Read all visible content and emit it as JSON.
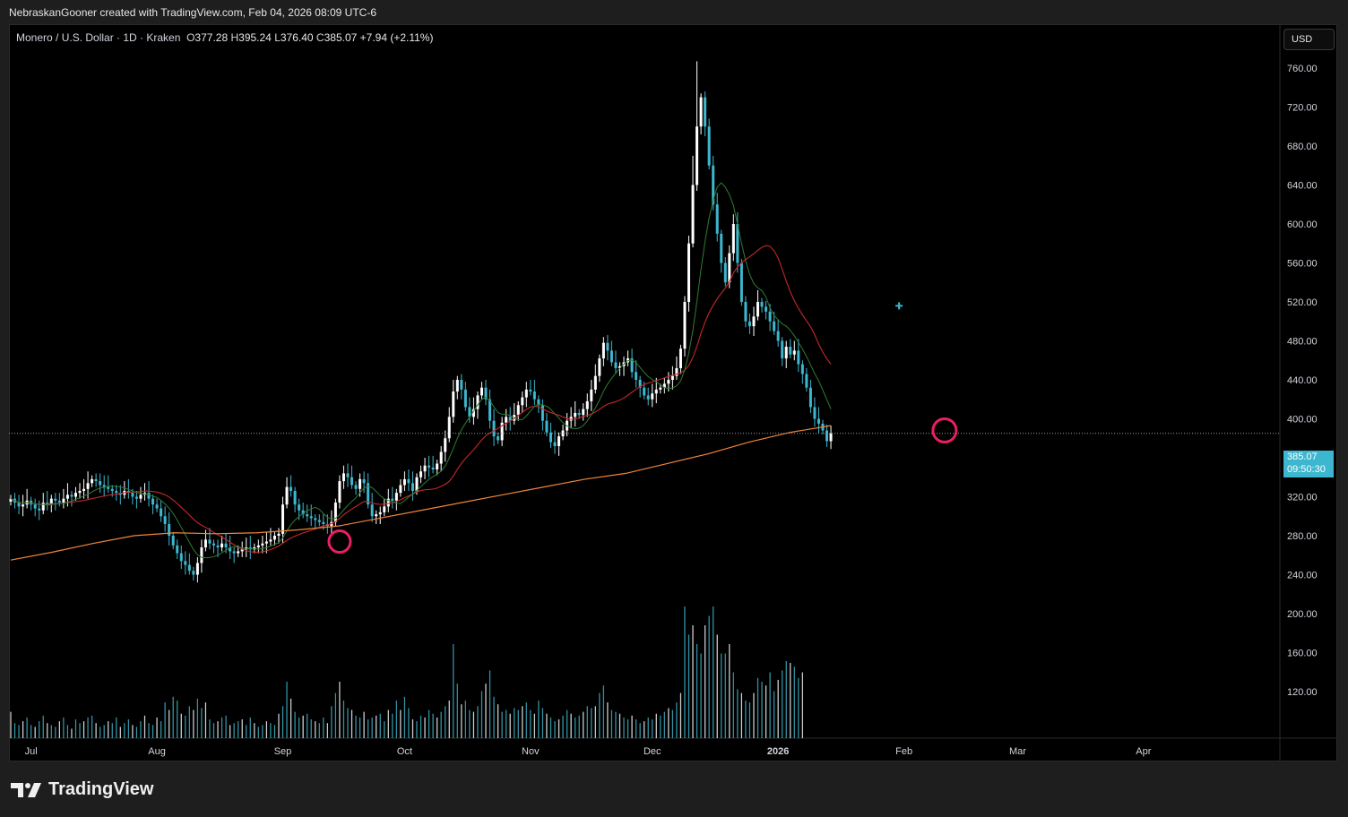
{
  "header": {
    "credit": "NebraskanGooner created with TradingView.com, Feb 04, 2026 08:09 UTC-6"
  },
  "legend": {
    "symbol": "Monero / U.S. Dollar · 1D · Kraken",
    "o_label": "O",
    "o": "377.28",
    "h_label": "H",
    "h": "395.24",
    "l_label": "L",
    "l": "376.40",
    "c_label": "C",
    "c": "385.07",
    "change": "+7.94 (+2.11%)"
  },
  "currency_button": "USD",
  "price_tag": {
    "price": "385.07",
    "countdown": "09:50:30"
  },
  "brand": "TradingView",
  "colors": {
    "up": "#ffffff",
    "down": "#3db7cf",
    "ma200": "#f0853c",
    "ma21": "#c62828",
    "ma9": "#2e7d32",
    "marker": "#e91e63",
    "volume": "#3db7cf"
  },
  "chart_data": {
    "type": "candlestick",
    "title": "Monero / U.S. Dollar · 1D · Kraken",
    "ylim": [
      80,
      800
    ],
    "y_ticks": [
      "120.00",
      "160.00",
      "200.00",
      "240.00",
      "280.00",
      "320.00",
      "360.00",
      "400.00",
      "440.00",
      "480.00",
      "520.00",
      "560.00",
      "600.00",
      "640.00",
      "680.00",
      "720.00",
      "760.00"
    ],
    "x_ticks": [
      {
        "label": "Jul",
        "day": 5
      },
      {
        "label": "Aug",
        "day": 36
      },
      {
        "label": "Sep",
        "day": 67
      },
      {
        "label": "Oct",
        "day": 97
      },
      {
        "label": "Nov",
        "day": 128
      },
      {
        "label": "Dec",
        "day": 158
      },
      {
        "label": "2026",
        "day": 189
      },
      {
        "label": "Feb",
        "day": 220
      },
      {
        "label": "Mar",
        "day": 248
      },
      {
        "label": "Apr",
        "day": 279
      }
    ],
    "first_day": "2025-06-26",
    "closes": [
      318,
      314,
      310,
      312,
      316,
      312,
      308,
      306,
      314,
      312,
      318,
      316,
      314,
      318,
      322,
      320,
      324,
      326,
      328,
      334,
      338,
      336,
      332,
      330,
      328,
      326,
      324,
      322,
      326,
      324,
      320,
      318,
      322,
      324,
      318,
      312,
      308,
      300,
      292,
      280,
      270,
      262,
      254,
      250,
      244,
      240,
      252,
      268,
      276,
      272,
      270,
      268,
      272,
      268,
      264,
      262,
      264,
      266,
      268,
      266,
      268,
      270,
      272,
      274,
      276,
      280,
      282,
      312,
      330,
      326,
      312,
      306,
      302,
      300,
      298,
      296,
      294,
      292,
      290,
      294,
      314,
      336,
      344,
      340,
      332,
      328,
      338,
      334,
      312,
      300,
      302,
      304,
      310,
      318,
      316,
      324,
      332,
      338,
      334,
      326,
      340,
      346,
      352,
      350,
      348,
      354,
      366,
      380,
      402,
      428,
      440,
      430,
      412,
      402,
      410,
      424,
      432,
      420,
      398,
      382,
      378,
      396,
      402,
      398,
      404,
      414,
      422,
      430,
      428,
      420,
      414,
      398,
      386,
      376,
      372,
      382,
      388,
      398,
      402,
      406,
      404,
      410,
      418,
      430,
      444,
      462,
      478,
      470,
      458,
      452,
      454,
      458,
      462,
      448,
      440,
      432,
      424,
      420,
      426,
      430,
      432,
      436,
      440,
      444,
      452,
      472,
      520,
      580,
      640,
      700,
      730,
      700,
      660,
      620,
      590,
      560,
      540,
      570,
      600,
      560,
      520,
      500,
      495,
      505,
      520,
      515,
      510,
      500,
      490,
      480,
      462,
      474,
      466,
      470,
      456,
      446,
      432,
      412,
      400,
      395,
      388,
      377,
      385
    ],
    "ma_200": [
      255,
      263,
      272,
      280,
      283,
      282,
      283,
      286,
      290,
      298,
      306,
      314,
      322,
      330,
      338,
      344,
      354,
      364,
      376,
      386,
      393
    ],
    "volume_label_note": "volume bars share the price axis visually",
    "volume": [
      28,
      16,
      14,
      18,
      22,
      14,
      12,
      18,
      24,
      16,
      14,
      12,
      18,
      22,
      14,
      10,
      20,
      16,
      18,
      22,
      24,
      16,
      12,
      14,
      18,
      16,
      22,
      12,
      16,
      20,
      14,
      12,
      18,
      24,
      16,
      14,
      22,
      18,
      38,
      30,
      44,
      40,
      26,
      24,
      34,
      30,
      42,
      32,
      38,
      20,
      16,
      18,
      22,
      24,
      14,
      16,
      18,
      20,
      14,
      22,
      16,
      12,
      14,
      18,
      16,
      14,
      26,
      34,
      60,
      42,
      28,
      22,
      24,
      26,
      20,
      18,
      16,
      22,
      16,
      34,
      48,
      60,
      40,
      32,
      30,
      24,
      22,
      28,
      20,
      22,
      24,
      26,
      18,
      30,
      26,
      40,
      30,
      44,
      32,
      20,
      18,
      24,
      22,
      30,
      26,
      22,
      28,
      34,
      40,
      100,
      58,
      36,
      40,
      30,
      28,
      34,
      50,
      58,
      72,
      44,
      36,
      28,
      30,
      26,
      32,
      30,
      34,
      38,
      30,
      26,
      40,
      32,
      26,
      22,
      18,
      20,
      24,
      30,
      26,
      22,
      24,
      28,
      34,
      32,
      34,
      48,
      56,
      38,
      30,
      28,
      26,
      22,
      20,
      24,
      20,
      16,
      18,
      22,
      20,
      26,
      24,
      28,
      32,
      30,
      38,
      48,
      140,
      110,
      120,
      100,
      90,
      120,
      130,
      140,
      110,
      90,
      90,
      100,
      70,
      52,
      48,
      40,
      38,
      48,
      64,
      60,
      56,
      70,
      50,
      62,
      72,
      82,
      80,
      76,
      64,
      70
    ]
  }
}
